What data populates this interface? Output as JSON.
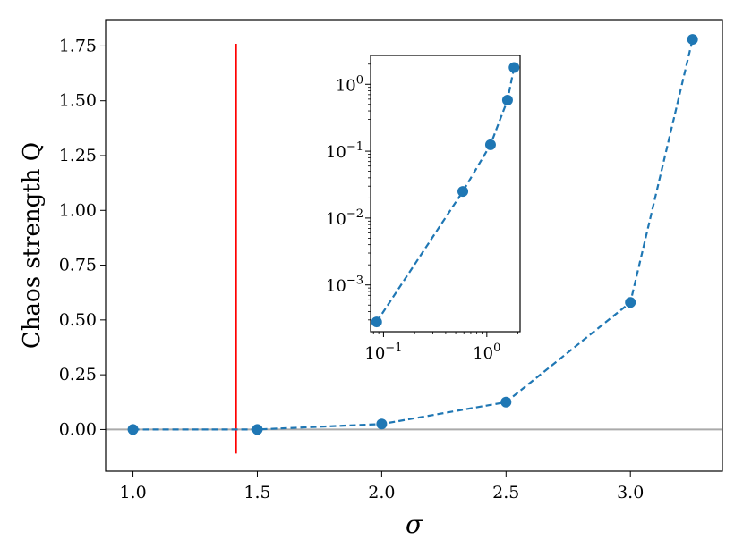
{
  "chart_data": [
    {
      "type": "line",
      "xlabel": "σ",
      "ylabel": "Chaos strength Q",
      "xlim": [
        0.89,
        3.37
      ],
      "ylim": [
        -0.19,
        1.87
      ],
      "xticks": [
        1.0,
        1.5,
        2.0,
        2.5,
        3.0
      ],
      "xtick_labels": [
        "1.0",
        "1.5",
        "2.0",
        "2.5",
        "3.0"
      ],
      "yticks": [
        0.0,
        0.25,
        0.5,
        0.75,
        1.0,
        1.25,
        1.5,
        1.75
      ],
      "ytick_labels": [
        "0.00",
        "0.25",
        "0.50",
        "0.75",
        "1.00",
        "1.25",
        "1.50",
        "1.75"
      ],
      "grid": false,
      "series": [
        {
          "x": [
            1.0,
            1.5,
            2.0,
            2.5,
            3.0,
            3.25
          ],
          "y": [
            0.0,
            0.0003,
            0.025,
            0.125,
            0.58,
            1.78
          ],
          "color": "#1f77b4",
          "linestyle": "dashed",
          "marker": "circle"
        }
      ],
      "reference_lines": [
        {
          "orientation": "horizontal",
          "y": 0.0,
          "color": "#aaaaaa"
        },
        {
          "orientation": "vertical",
          "x": 1.414,
          "ymin": -0.11,
          "ymax": 1.76,
          "color": "#ff0000"
        }
      ]
    },
    {
      "type": "line",
      "inset": true,
      "xscale": "log",
      "yscale": "log",
      "xlim": [
        0.075,
        2.1
      ],
      "ylim": [
        0.0002,
        2.7
      ],
      "xticks": [
        0.1,
        1.0
      ],
      "xtick_labels": [
        "10",
        "10"
      ],
      "xtick_exponents": [
        "−1",
        "0"
      ],
      "yticks": [
        0.001,
        0.01,
        0.1,
        1.0
      ],
      "ytick_labels": [
        "10",
        "10",
        "10",
        "10"
      ],
      "ytick_exponents": [
        "−3",
        "−2",
        "−1",
        "0"
      ],
      "series": [
        {
          "x": [
            0.0858,
            0.586,
            1.086,
            1.586,
            1.836
          ],
          "y": [
            0.00028,
            0.025,
            0.125,
            0.58,
            1.78
          ],
          "color": "#1f77b4",
          "linestyle": "dashed",
          "marker": "circle"
        }
      ]
    }
  ]
}
